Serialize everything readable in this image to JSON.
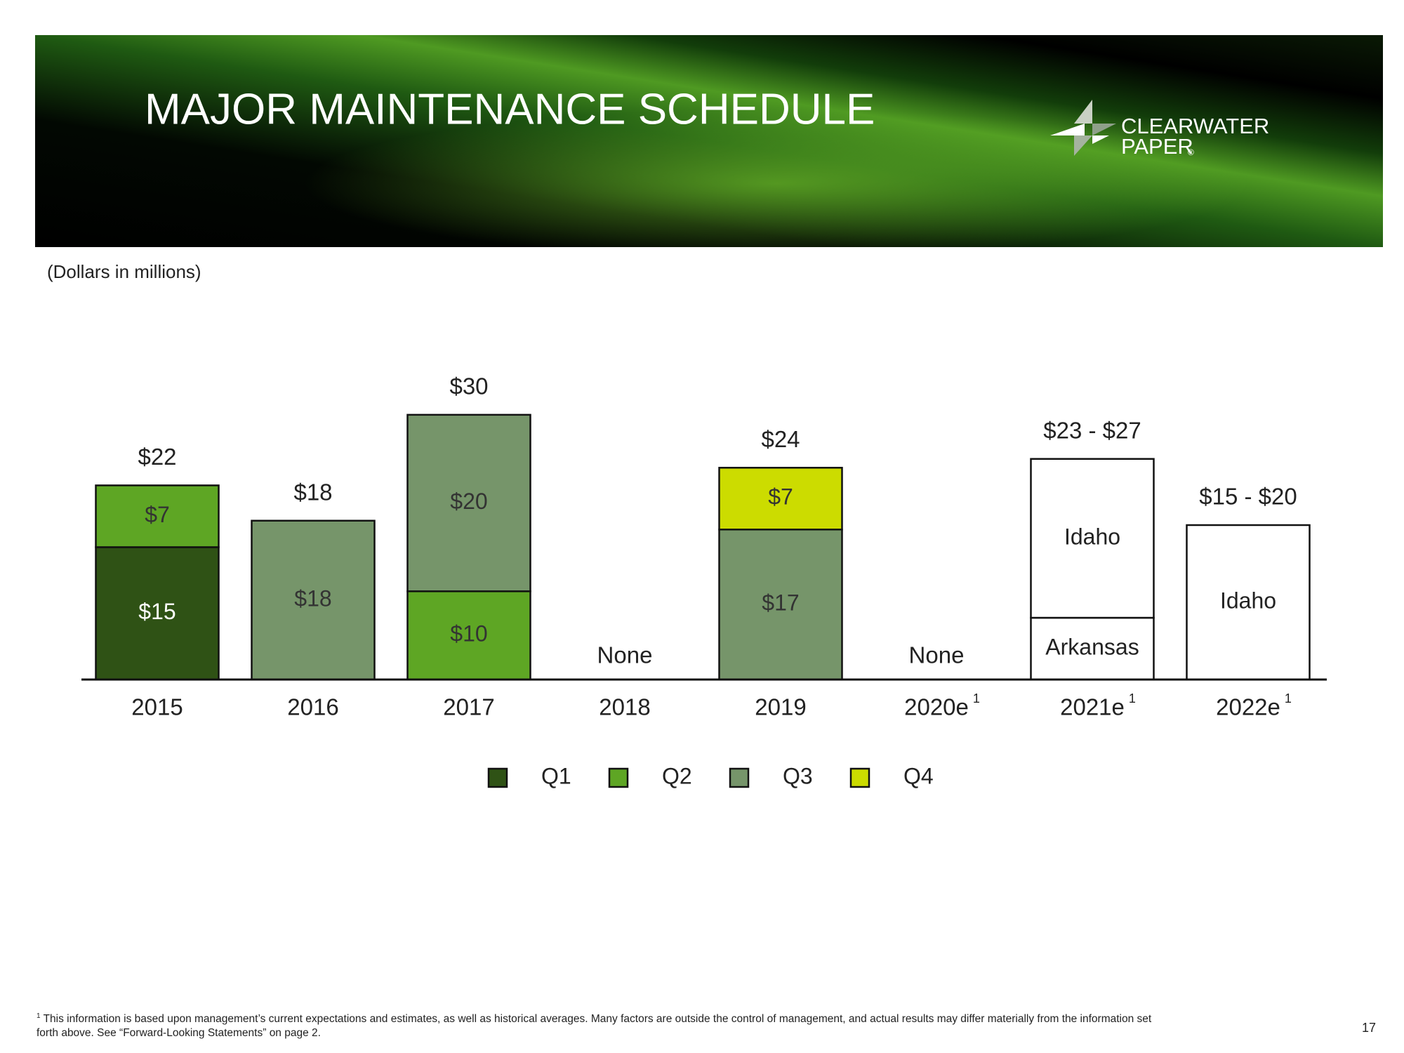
{
  "header": {
    "title": "MAJOR MAINTENANCE SCHEDULE",
    "logo": {
      "line1": "CLEARWATER",
      "line2": "PAPER",
      "mark": "®"
    }
  },
  "chart_data": {
    "type": "stacked_bar",
    "subtitle": "(Dollars in millions)",
    "categories": [
      "2015",
      "2016",
      "2017",
      "2018",
      "2019",
      "2020e",
      "2021e",
      "2022e"
    ],
    "category_footnotes": [
      null,
      null,
      null,
      null,
      null,
      "1",
      "1",
      "1"
    ],
    "ylim": [
      0,
      35
    ],
    "series": [
      {
        "name": "Q1",
        "color": "#2f5215",
        "label_color": "#ffffff",
        "values": [
          15,
          null,
          null,
          null,
          null,
          null,
          null,
          null
        ],
        "value_labels": [
          "$15",
          null,
          null,
          null,
          null,
          null,
          null,
          null
        ]
      },
      {
        "name": "Q2",
        "color": "#5ea624",
        "label_color": "#333333",
        "values": [
          7,
          null,
          10,
          null,
          null,
          null,
          null,
          null
        ],
        "value_labels": [
          "$7",
          null,
          "$10",
          null,
          null,
          null,
          null,
          null
        ]
      },
      {
        "name": "Q3",
        "color": "#76956a",
        "label_color": "#333333",
        "values": [
          null,
          18,
          20,
          null,
          17,
          null,
          null,
          null
        ],
        "value_labels": [
          null,
          "$18",
          "$20",
          null,
          "$17",
          null,
          null,
          null
        ]
      },
      {
        "name": "Q4",
        "color": "#ccdc00",
        "label_color": "#333333",
        "values": [
          null,
          null,
          null,
          null,
          7,
          null,
          null,
          null
        ],
        "value_labels": [
          null,
          null,
          null,
          null,
          "$7",
          null,
          null,
          null
        ]
      }
    ],
    "estimates": [
      {
        "name": "Arkansas",
        "color": "#ffffff",
        "values": [
          null,
          null,
          null,
          null,
          null,
          null,
          7,
          null
        ]
      },
      {
        "name": "Idaho",
        "color": "#ffffff",
        "values": [
          null,
          null,
          null,
          null,
          null,
          null,
          18,
          17.5
        ]
      }
    ],
    "total_labels": [
      "$22",
      "$18",
      "$30",
      "None",
      "$24",
      "None",
      "$23 - $27",
      "$15 - $20"
    ],
    "legend": "bottom"
  },
  "footnote": {
    "marker": "1",
    "lines": [
      "This information is based upon management’s current expectations and estimates, as well as historical averages. Many factors are outside the control of management, and actual results may differ materially from the information set",
      "forth above.  See “Forward-Looking Statements” on page 2."
    ]
  },
  "page_number": "17"
}
